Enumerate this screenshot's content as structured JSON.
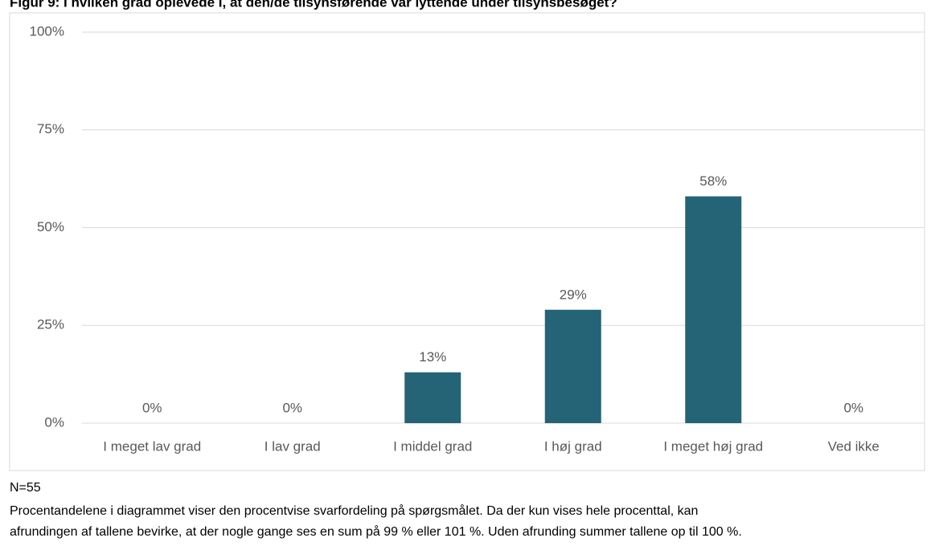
{
  "chart_data": {
    "type": "bar",
    "title": "Figur 9: I hvilken grad oplevede I, at den/de tilsynsførende var lyttende under tilsynsbesøget?",
    "categories": [
      "I meget lav grad",
      "I lav grad",
      "I middel grad",
      "I høj grad",
      "I meget høj grad",
      "Ved ikke"
    ],
    "values": [
      0,
      0,
      13,
      29,
      58,
      0
    ],
    "value_labels": [
      "0%",
      "0%",
      "13%",
      "29%",
      "58%",
      "0%"
    ],
    "color": "#256377",
    "ylim": [
      0,
      100
    ],
    "yticks": [
      {
        "value": 0,
        "label": "0%"
      },
      {
        "value": 25,
        "label": "25%"
      },
      {
        "value": 50,
        "label": "50%"
      },
      {
        "value": 75,
        "label": "75%"
      },
      {
        "value": 100,
        "label": "100%"
      }
    ],
    "grid": true,
    "n": "N=55",
    "note": [
      "Procentandelene i diagrammet viser den procentvise svarfordeling på spørgsmålet. Da der kun vises hele procenttal, kan",
      "afrundingen af tallene bevirke, at der nogle gange ses en sum på 99 % eller 101 %. Uden afrunding summer tallene op til 100 %."
    ]
  }
}
